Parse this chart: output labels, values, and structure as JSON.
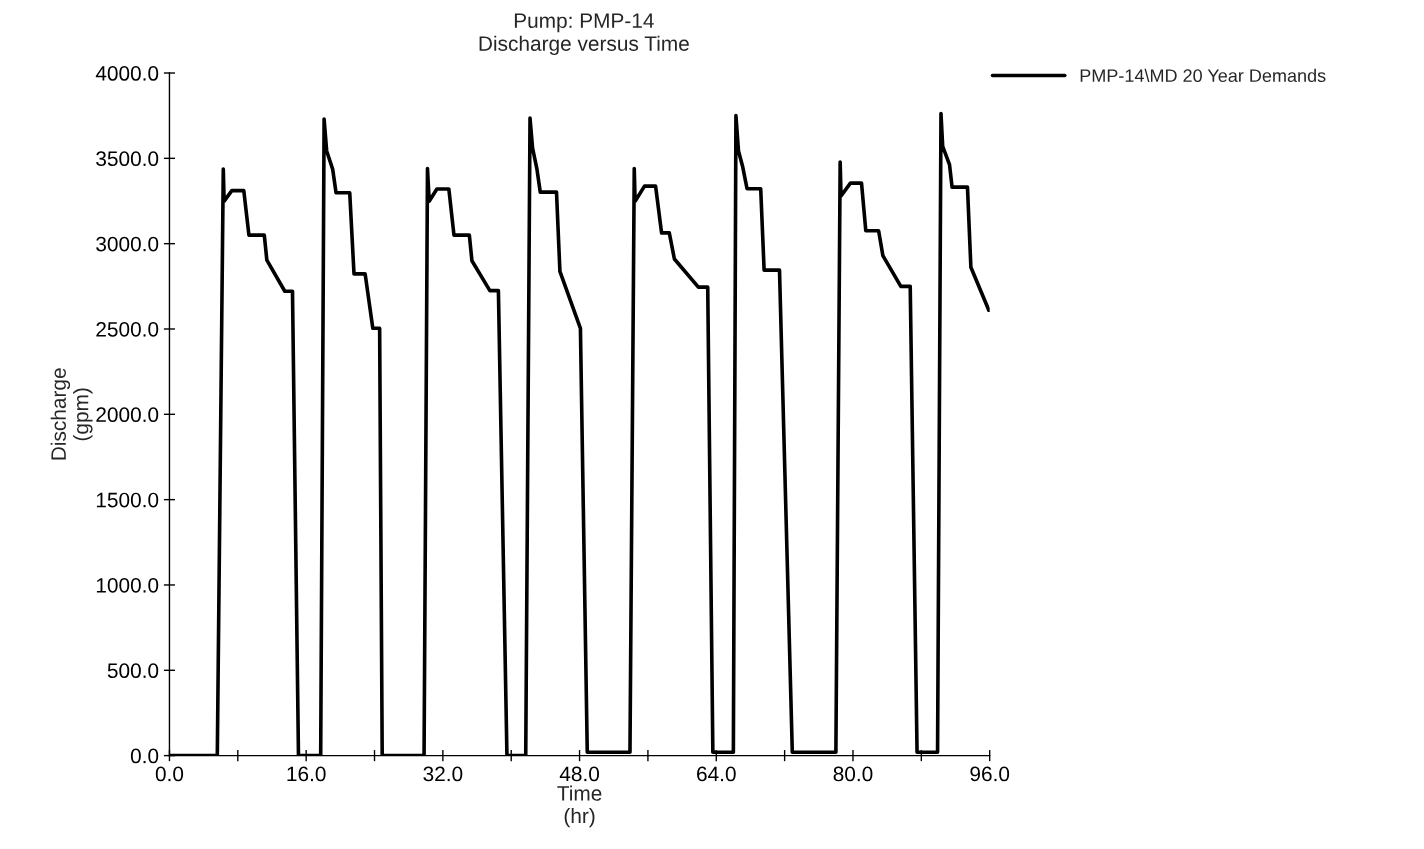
{
  "chart_data": {
    "type": "line",
    "title": "Pump: PMP-14",
    "subtitle": "Discharge versus Time",
    "xlabel": "Time\n(hr)",
    "ylabel": "Discharge\n(gpm)",
    "x": [
      0,
      5.6,
      6.3,
      6.4,
      7.3,
      8.7,
      9.3,
      11.1,
      11.4,
      13.5,
      14.4,
      15.1,
      17.7,
      18.1,
      18.4,
      19.1,
      19.5,
      21.1,
      21.6,
      22.9,
      23.8,
      24.6,
      24.9,
      29.8,
      30.2,
      30.4,
      31.3,
      32.7,
      33.3,
      35.1,
      35.4,
      37.5,
      38.5,
      39.5,
      41.7,
      42.2,
      42.5,
      43.0,
      43.4,
      45.3,
      45.7,
      48.1,
      48.9,
      53.9,
      54.4,
      54.5,
      55.6,
      56.9,
      57.6,
      58.5,
      59.1,
      61.9,
      63.0,
      63.6,
      66.0,
      66.3,
      66.6,
      67.1,
      67.6,
      69.2,
      69.6,
      71.4,
      72.9,
      78.0,
      78.5,
      78.6,
      79.7,
      81.0,
      81.5,
      83.0,
      83.5,
      85.6,
      86.7,
      87.5,
      89.9,
      90.3,
      90.5,
      91.3,
      91.6,
      93.4,
      93.8,
      95.9
    ],
    "series": [
      {
        "name": "PMP-14\\MD 20 Year Demands",
        "color": "#000000",
        "values": [
          0,
          0,
          3437,
          3249,
          3311,
          3311,
          3050,
          3050,
          2903,
          2721,
          2721,
          0,
          0,
          3730,
          3543,
          3437,
          3298,
          3298,
          2823,
          2823,
          2504,
          2504,
          0,
          0,
          3440,
          3249,
          3320,
          3320,
          3050,
          3050,
          2900,
          2725,
          2725,
          0,
          0,
          3736,
          3560,
          3440,
          3302,
          3302,
          2838,
          2504,
          20,
          20,
          3440,
          3249,
          3337,
          3337,
          3063,
          3063,
          2910,
          2745,
          2745,
          20,
          20,
          3751,
          3543,
          3449,
          3322,
          3322,
          2845,
          2845,
          20,
          20,
          3478,
          3279,
          3355,
          3355,
          3076,
          3076,
          2930,
          2750,
          2750,
          20,
          20,
          3762,
          3570,
          3463,
          3331,
          3331,
          2862,
          2610
        ]
      }
    ],
    "xlim": [
      0,
      96
    ],
    "ylim": [
      0,
      4000
    ],
    "xticks": [
      {
        "value": 0,
        "label": "0.0"
      },
      {
        "value": 8,
        "label": null
      },
      {
        "value": 16,
        "label": "16.0"
      },
      {
        "value": 24,
        "label": null
      },
      {
        "value": 32,
        "label": "32.0"
      },
      {
        "value": 40,
        "label": null
      },
      {
        "value": 48,
        "label": "48.0"
      },
      {
        "value": 56,
        "label": null
      },
      {
        "value": 64,
        "label": "64.0"
      },
      {
        "value": 72,
        "label": null
      },
      {
        "value": 80,
        "label": "80.0"
      },
      {
        "value": 88,
        "label": null
      },
      {
        "value": 96,
        "label": "96.0"
      }
    ],
    "yticks": [
      {
        "value": 0,
        "label": "0.0"
      },
      {
        "value": 500,
        "label": "500.0"
      },
      {
        "value": 1000,
        "label": "1000.0"
      },
      {
        "value": 1500,
        "label": "1500.0"
      },
      {
        "value": 2000,
        "label": "2000.0"
      },
      {
        "value": 2500,
        "label": "2500.0"
      },
      {
        "value": 3000,
        "label": "3000.0"
      },
      {
        "value": 3500,
        "label": "3500.0"
      },
      {
        "value": 4000,
        "label": "4000.0"
      }
    ],
    "grid": false,
    "legend": "top right",
    "marker": "none",
    "line_style": "solid"
  }
}
